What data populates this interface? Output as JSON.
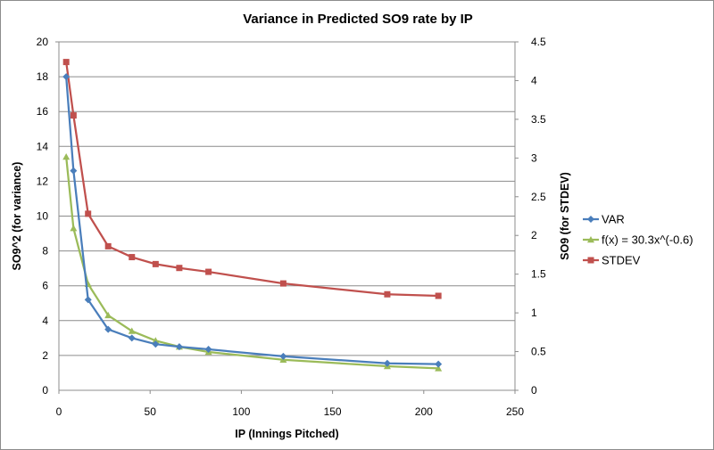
{
  "chart_data": {
    "type": "line",
    "title": "Variance in Predicted SO9 rate by IP",
    "xlabel": "IP (Innings Pitched)",
    "ylabel": "SO9^2 (for variance)",
    "y2label": "SO9 (for STDEV)",
    "xlim": [
      0,
      250
    ],
    "ylim": [
      0,
      20
    ],
    "y2lim": [
      0,
      4.5
    ],
    "x_ticks": [
      "0",
      "50",
      "100",
      "150",
      "200",
      "250"
    ],
    "y_ticks": [
      "0",
      "2",
      "4",
      "6",
      "8",
      "10",
      "12",
      "14",
      "16",
      "18",
      "20"
    ],
    "y2_ticks": [
      "0",
      "0.5",
      "1",
      "1.5",
      "2",
      "2.5",
      "3",
      "3.5",
      "4",
      "4.5"
    ],
    "grid": true,
    "legend_position": "right",
    "series": [
      {
        "name": "VAR",
        "axis": "left",
        "color": "#4a7ebb",
        "marker": "diamond",
        "x": [
          4,
          8,
          16,
          27,
          40,
          53,
          66,
          82,
          123,
          180,
          208
        ],
        "y": [
          18.0,
          12.6,
          5.2,
          3.5,
          3.0,
          2.65,
          2.5,
          2.35,
          1.95,
          1.55,
          1.5
        ]
      },
      {
        "name": "f(x) = 30.3x^(-0.6)",
        "axis": "left",
        "color": "#9bbb59",
        "marker": "triangle",
        "x": [
          4,
          8,
          16,
          27,
          40,
          53,
          66,
          82,
          123,
          180,
          208
        ],
        "y": [
          13.4,
          9.3,
          6.1,
          4.3,
          3.4,
          2.85,
          2.5,
          2.2,
          1.75,
          1.38,
          1.26
        ]
      },
      {
        "name": "STDEV",
        "axis": "right",
        "color": "#c0504d",
        "marker": "square",
        "x": [
          4,
          8,
          16,
          27,
          40,
          53,
          66,
          82,
          123,
          180,
          208
        ],
        "y": [
          4.24,
          3.55,
          2.28,
          1.86,
          1.72,
          1.63,
          1.58,
          1.53,
          1.38,
          1.24,
          1.22
        ]
      }
    ]
  }
}
